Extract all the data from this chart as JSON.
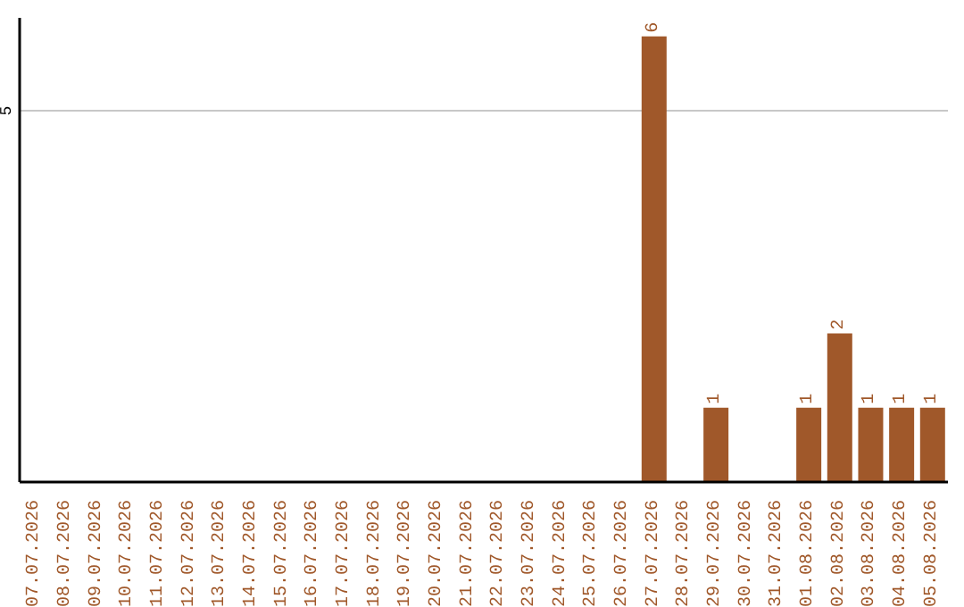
{
  "chart_data": {
    "type": "bar",
    "categories": [
      "07.07.2026",
      "08.07.2026",
      "09.07.2026",
      "10.07.2026",
      "11.07.2026",
      "12.07.2026",
      "13.07.2026",
      "14.07.2026",
      "15.07.2026",
      "16.07.2026",
      "17.07.2026",
      "18.07.2026",
      "19.07.2026",
      "20.07.2026",
      "21.07.2026",
      "22.07.2026",
      "23.07.2026",
      "24.07.2026",
      "25.07.2026",
      "26.07.2026",
      "27.07.2026",
      "28.07.2026",
      "29.07.2026",
      "30.07.2026",
      "31.07.2026",
      "01.08.2026",
      "02.08.2026",
      "03.08.2026",
      "04.08.2026",
      "05.08.2026"
    ],
    "values": [
      null,
      null,
      null,
      null,
      null,
      null,
      null,
      null,
      null,
      null,
      null,
      null,
      null,
      null,
      null,
      null,
      null,
      null,
      null,
      null,
      6,
      null,
      1,
      null,
      null,
      1,
      2,
      1,
      1,
      1
    ],
    "data_labels": true,
    "color": "#a0582a",
    "ylim": [
      0,
      6.25
    ],
    "yticks": [
      5
    ],
    "grid": "y"
  }
}
